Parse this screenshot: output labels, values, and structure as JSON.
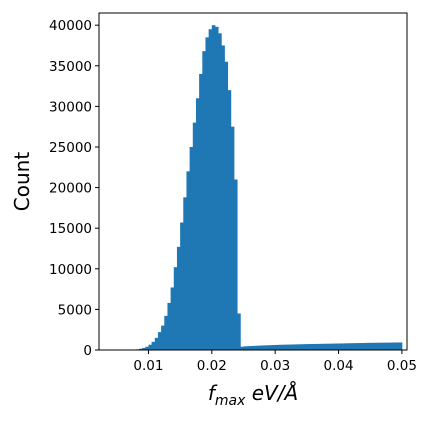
{
  "chart_data": {
    "type": "bar",
    "subtype": "histogram",
    "xlabel": "f",
    "xlabel_subscript": "max",
    "xlabel_units": " eV/Å",
    "ylabel": "Count",
    "xlim": [
      0.0022,
      0.0508
    ],
    "ylim": [
      0,
      41500
    ],
    "xticks": [
      0.01,
      0.02,
      0.03,
      0.04,
      0.05
    ],
    "xtick_labels": [
      "0.01",
      "0.02",
      "0.03",
      "0.04",
      "0.05"
    ],
    "yticks": [
      0,
      5000,
      10000,
      15000,
      20000,
      25000,
      30000,
      35000,
      40000
    ],
    "ytick_labels": [
      "0",
      "5000",
      "10000",
      "15000",
      "20000",
      "25000",
      "30000",
      "35000",
      "40000"
    ],
    "bar_color": "#1f77b4",
    "grid": false,
    "bin_width": 0.0005,
    "bins_x": [
      0.007,
      0.0075,
      0.008,
      0.0085,
      0.009,
      0.0095,
      0.01,
      0.0105,
      0.011,
      0.0115,
      0.012,
      0.0125,
      0.013,
      0.0135,
      0.014,
      0.0145,
      0.015,
      0.0155,
      0.016,
      0.0165,
      0.017,
      0.0175,
      0.018,
      0.0185,
      0.019,
      0.0195,
      0.02,
      0.0205,
      0.021,
      0.0215,
      0.022,
      0.0225,
      0.023,
      0.0235,
      0.024,
      0.0245,
      0.025,
      0.0255,
      0.026,
      0.0265,
      0.027,
      0.0275,
      0.028,
      0.0285,
      0.029,
      0.0295,
      0.03,
      0.0305,
      0.031,
      0.0315,
      0.032,
      0.0325,
      0.033,
      0.0335,
      0.034,
      0.0345,
      0.035,
      0.0355,
      0.036,
      0.0365,
      0.037,
      0.0375,
      0.038,
      0.0385,
      0.039,
      0.0395,
      0.04,
      0.0405,
      0.041,
      0.0415,
      0.042,
      0.0425,
      0.043,
      0.0435,
      0.044,
      0.0445,
      0.045,
      0.0455,
      0.046,
      0.0465,
      0.047,
      0.0475,
      0.048,
      0.0485,
      0.049,
      0.0495
    ],
    "values": [
      20,
      40,
      80,
      150,
      250,
      400,
      650,
      1000,
      1500,
      2200,
      3000,
      4200,
      5800,
      7700,
      10200,
      12700,
      15700,
      18800,
      22000,
      25000,
      28000,
      31000,
      34000,
      36800,
      38500,
      39500,
      40000,
      39800,
      39000,
      37500,
      35500,
      32000,
      27500,
      21000,
      4500,
      400,
      450,
      470,
      490,
      510,
      530,
      550,
      565,
      580,
      595,
      610,
      625,
      640,
      650,
      660,
      670,
      680,
      690,
      700,
      710,
      720,
      730,
      740,
      745,
      750,
      760,
      770,
      775,
      780,
      790,
      800,
      805,
      810,
      820,
      830,
      840,
      850,
      855,
      860,
      870,
      880,
      885,
      890,
      895,
      900,
      905,
      910,
      915,
      920,
      925,
      930
    ]
  }
}
